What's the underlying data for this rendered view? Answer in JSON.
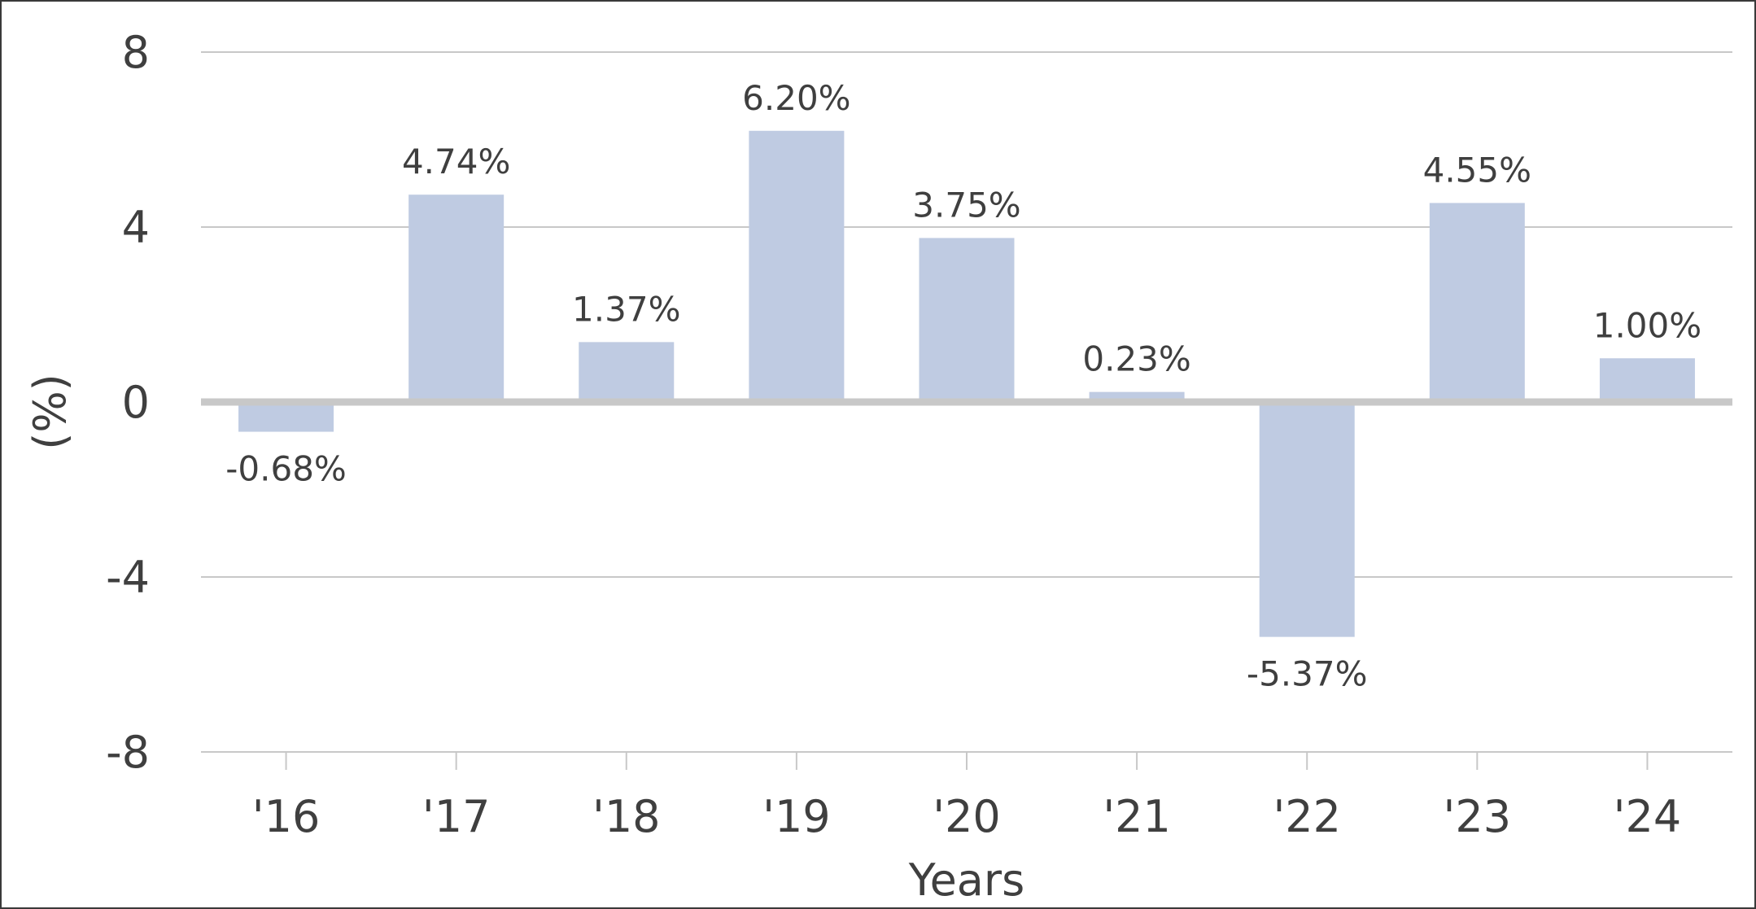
{
  "chart_data": {
    "type": "bar",
    "categories": [
      "'16",
      "'17",
      "'18",
      "'19",
      "'20",
      "'21",
      "'22",
      "'23",
      "'24"
    ],
    "values": [
      -0.68,
      4.74,
      1.37,
      6.2,
      3.75,
      0.23,
      -5.37,
      4.55,
      1.0
    ],
    "data_labels": [
      "-0.68%",
      "4.74%",
      "1.37%",
      "6.20%",
      "3.75%",
      "0.23%",
      "-5.37%",
      "4.55%",
      "1.00%"
    ],
    "title": "",
    "xlabel": "Years",
    "ylabel": "(%)",
    "ylim": [
      -8,
      8
    ],
    "yticks": [
      8,
      4,
      0,
      -4,
      -8
    ],
    "ytick_labels": [
      "8",
      "4",
      "0",
      "-4",
      "-8"
    ],
    "grid": true,
    "legend": "none",
    "colors": {
      "bar": "#bfcbe2",
      "grid": "#c8c8c8",
      "zero_line": "#c8c8c8",
      "text": "#3f3f3f",
      "border": "#3a3a3a"
    }
  }
}
